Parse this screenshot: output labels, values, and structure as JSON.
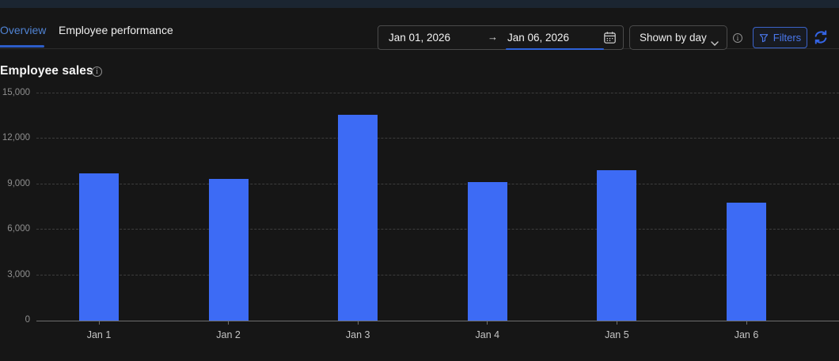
{
  "tabs": [
    {
      "label": "Overview",
      "active": true
    },
    {
      "label": "Employee performance",
      "active": false
    }
  ],
  "toolbar": {
    "date_start": "Jan 01, 2026",
    "date_range_arrow": "→",
    "date_end": "Jan 06, 2026",
    "shown_by_label": "Shown by day",
    "filters_label": "Filters"
  },
  "chart": {
    "title": "Employee sales"
  },
  "chart_data": {
    "type": "bar",
    "title": "Employee sales",
    "categories": [
      "Jan 1",
      "Jan 2",
      "Jan 3",
      "Jan 4",
      "Jan 5",
      "Jan 6"
    ],
    "values": [
      9700,
      9350,
      13600,
      9150,
      9950,
      7800
    ],
    "xlabel": "",
    "ylabel": "",
    "ylim": [
      0,
      15000
    ],
    "y_ticks": [
      0,
      3000,
      6000,
      9000,
      12000,
      15000
    ],
    "y_tick_labels": [
      "0",
      "3,000",
      "6,000",
      "9,000",
      "12,000",
      "15,000"
    ],
    "grid": "horizontal-dashed",
    "legend": "none",
    "bar_color": "#3d6bf5"
  },
  "colors": {
    "background": "#161616",
    "top_strip": "#1b2531",
    "bar_blue": "#3d6bf5",
    "tab_active_blue": "#5083d3",
    "tab_underline_blue": "#2d5dc8",
    "filters_blue": "#4a78ee",
    "refresh_blue": "#3465e6",
    "gridline": "#3d3d3d",
    "axis": "#6f6f6f"
  }
}
